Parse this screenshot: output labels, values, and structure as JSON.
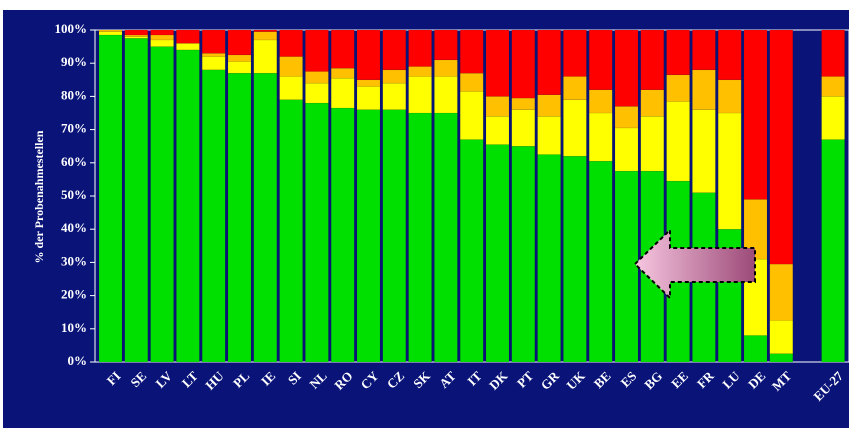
{
  "chart_data": {
    "type": "bar",
    "stacked": true,
    "percent_stacked": true,
    "title": "",
    "xlabel": "",
    "ylabel": "% der Probenahmestellen",
    "ylim": [
      0,
      100
    ],
    "yticks": [
      "0%",
      "10%",
      "20%",
      "30%",
      "40%",
      "50%",
      "60%",
      "70%",
      "80%",
      "90%",
      "100%"
    ],
    "grid": false,
    "legend": "none",
    "categories": [
      "FI",
      "SE",
      "LV",
      "LT",
      "HU",
      "PL",
      "IE",
      "SI",
      "NL",
      "RO",
      "CY",
      "CZ",
      "SK",
      "AT",
      "IT",
      "DK",
      "PT",
      "GR",
      "UK",
      "BE",
      "ES",
      "BG",
      "EE",
      "FR",
      "LU",
      "DE",
      "MT",
      "EU-27"
    ],
    "series": [
      {
        "color": "#00e000",
        "values": [
          98.5,
          97.5,
          95,
          94,
          88,
          87,
          87,
          79,
          78,
          76.5,
          76,
          76,
          75,
          75,
          67,
          65.5,
          65,
          62.5,
          62,
          60.5,
          57.5,
          57.5,
          54.5,
          51,
          40,
          8,
          2.5,
          67
        ]
      },
      {
        "color": "#ffff00",
        "values": [
          1,
          0.5,
          2,
          2,
          4,
          3.5,
          10,
          7,
          6,
          9,
          7,
          8,
          11,
          11,
          14.5,
          8.5,
          11,
          11.5,
          17,
          14.5,
          13,
          16.5,
          24,
          25,
          35,
          23,
          10,
          13
        ]
      },
      {
        "color": "#ffc000",
        "values": [
          0.5,
          0.5,
          1.5,
          0,
          1,
          2,
          2.5,
          6,
          3.5,
          3,
          2,
          4,
          3,
          5,
          5.5,
          6,
          3.5,
          6.5,
          7,
          7,
          6.5,
          8,
          8,
          12,
          10,
          18,
          17,
          6
        ]
      },
      {
        "color": "#ff0000",
        "values": [
          0,
          1.5,
          1.5,
          4,
          7,
          7.5,
          0.5,
          8,
          12.5,
          11.5,
          15,
          12,
          11,
          9,
          13,
          20,
          20.5,
          19.5,
          14,
          18,
          23,
          18,
          13.5,
          12,
          15,
          51,
          70.5,
          14
        ]
      }
    ],
    "annotations": [
      {
        "type": "arrow",
        "direction": "left",
        "color": "#e38ab4",
        "description": "pink arrow pointing left"
      }
    ]
  }
}
